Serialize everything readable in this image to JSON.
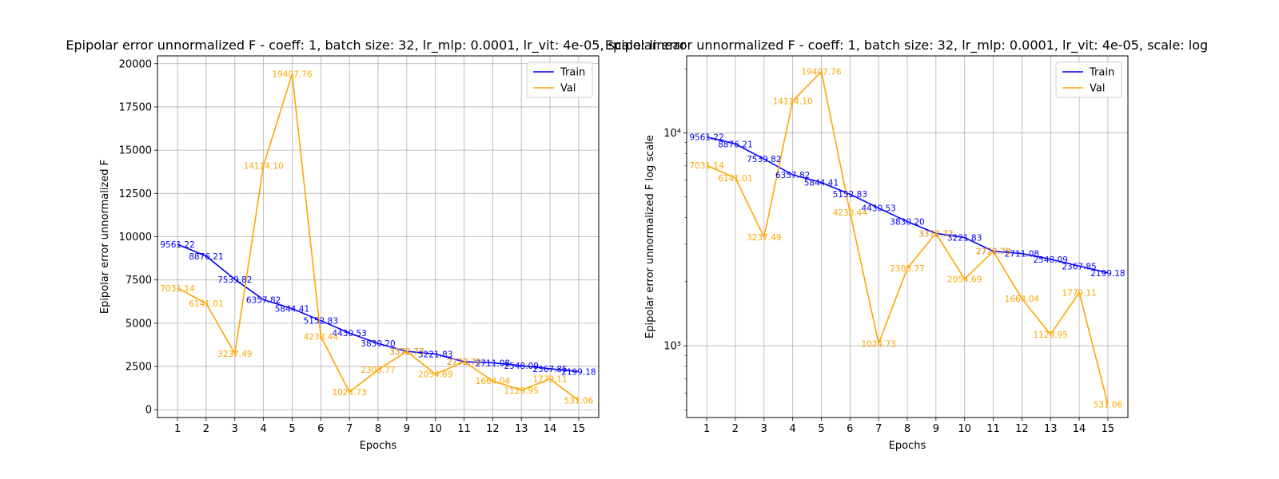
{
  "colors": {
    "train": "#0000ff",
    "val": "#ffa500",
    "grid": "#b0b0b0"
  },
  "chart_data": [
    {
      "type": "line",
      "title": "Epipolar error unnormalized F - coeff: 1, batch size: 32, lr_mlp: 0.0001, lr_vit: 4e-05, scale: linear",
      "xlabel": "Epochs",
      "ylabel": "Epipolar error unnormalized F",
      "yscale": "linear",
      "ylim": [
        -450,
        20450
      ],
      "yticks": [
        0,
        2500,
        5000,
        7500,
        10000,
        12500,
        15000,
        17500,
        20000
      ],
      "ytick_labels": [
        "0",
        "2500",
        "5000",
        "7500",
        "10000",
        "12500",
        "15000",
        "17500",
        "20000"
      ],
      "xlim": [
        0.3,
        15.7
      ],
      "x": [
        1,
        2,
        3,
        4,
        5,
        6,
        7,
        8,
        9,
        10,
        11,
        12,
        13,
        14,
        15
      ],
      "xtick_labels": [
        "1",
        "2",
        "3",
        "4",
        "5",
        "6",
        "7",
        "8",
        "9",
        "10",
        "11",
        "12",
        "13",
        "14",
        "15"
      ],
      "grid": true,
      "legend": "top-right",
      "series": [
        {
          "name": "Train",
          "values": [
            9561.22,
            8876.21,
            7539.82,
            6357.82,
            5844.41,
            5152.83,
            4430.53,
            3830.2,
            3372.73,
            3221.83,
            2778.79,
            2711.08,
            2548.09,
            2367.85,
            2199.18
          ],
          "labels": [
            "9561.22",
            "8876.21",
            "7539.82",
            "6357.82",
            "5844.41",
            "5152.83",
            "4430.53",
            "3830.20",
            "3372.73",
            "3221.83",
            "2778.79",
            "2711.08",
            "2548.09",
            "2367.85",
            "2199.18"
          ]
        },
        {
          "name": "Val",
          "values": [
            7031.14,
            6141.01,
            3237.49,
            14114.1,
            19407.76,
            4238.44,
            1024.73,
            2308.77,
            3372.73,
            2054.69,
            2778.79,
            1664.04,
            1129.95,
            1779.11,
            531.06
          ],
          "labels": [
            "7031.14",
            "6141.01",
            "3237.49",
            "14114.10",
            "19407.76",
            "4238.44",
            "1024.73",
            "2308.77",
            "3372.73",
            "2054.69",
            "2778.79",
            "1664.04",
            "1129.95",
            "1779.11",
            "531.06"
          ]
        }
      ]
    },
    {
      "type": "line",
      "title": "Epipolar error unnormalized F - coeff: 1, batch size: 32, lr_mlp: 0.0001, lr_vit: 4e-05, scale: log",
      "xlabel": "Epochs",
      "ylabel": "Epipolar error unnormalized F log scale",
      "yscale": "log",
      "ylim": [
        460,
        23000
      ],
      "yticks": [
        1000,
        10000
      ],
      "ytick_labels": [
        "10³",
        "10⁴"
      ],
      "xlim": [
        0.3,
        15.7
      ],
      "x": [
        1,
        2,
        3,
        4,
        5,
        6,
        7,
        8,
        9,
        10,
        11,
        12,
        13,
        14,
        15
      ],
      "xtick_labels": [
        "1",
        "2",
        "3",
        "4",
        "5",
        "6",
        "7",
        "8",
        "9",
        "10",
        "11",
        "12",
        "13",
        "14",
        "15"
      ],
      "grid": true,
      "legend": "top-right",
      "series": [
        {
          "name": "Train",
          "values": [
            9561.22,
            8876.21,
            7539.82,
            6357.82,
            5844.41,
            5152.83,
            4430.53,
            3830.2,
            3372.73,
            3221.83,
            2778.79,
            2711.08,
            2548.09,
            2367.85,
            2199.18
          ],
          "labels": [
            "9561.22",
            "8876.21",
            "7539.82",
            "6357.82",
            "5844.41",
            "5152.83",
            "4430.53",
            "3830.20",
            "3372.73",
            "3221.83",
            "2778.79",
            "2711.08",
            "2548.09",
            "2367.85",
            "2199.18"
          ]
        },
        {
          "name": "Val",
          "values": [
            7031.14,
            6141.01,
            3237.49,
            14114.1,
            19407.76,
            4238.44,
            1024.73,
            2308.77,
            3372.73,
            2054.69,
            2778.79,
            1664.04,
            1129.95,
            1779.11,
            531.06
          ],
          "labels": [
            "7031.14",
            "6141.01",
            "3237.49",
            "14114.10",
            "19407.76",
            "4238.44",
            "1024.73",
            "2308.77",
            "3372.73",
            "2054.69",
            "2778.79",
            "1664.04",
            "1129.95",
            "1779.11",
            "531.06"
          ]
        }
      ]
    }
  ]
}
